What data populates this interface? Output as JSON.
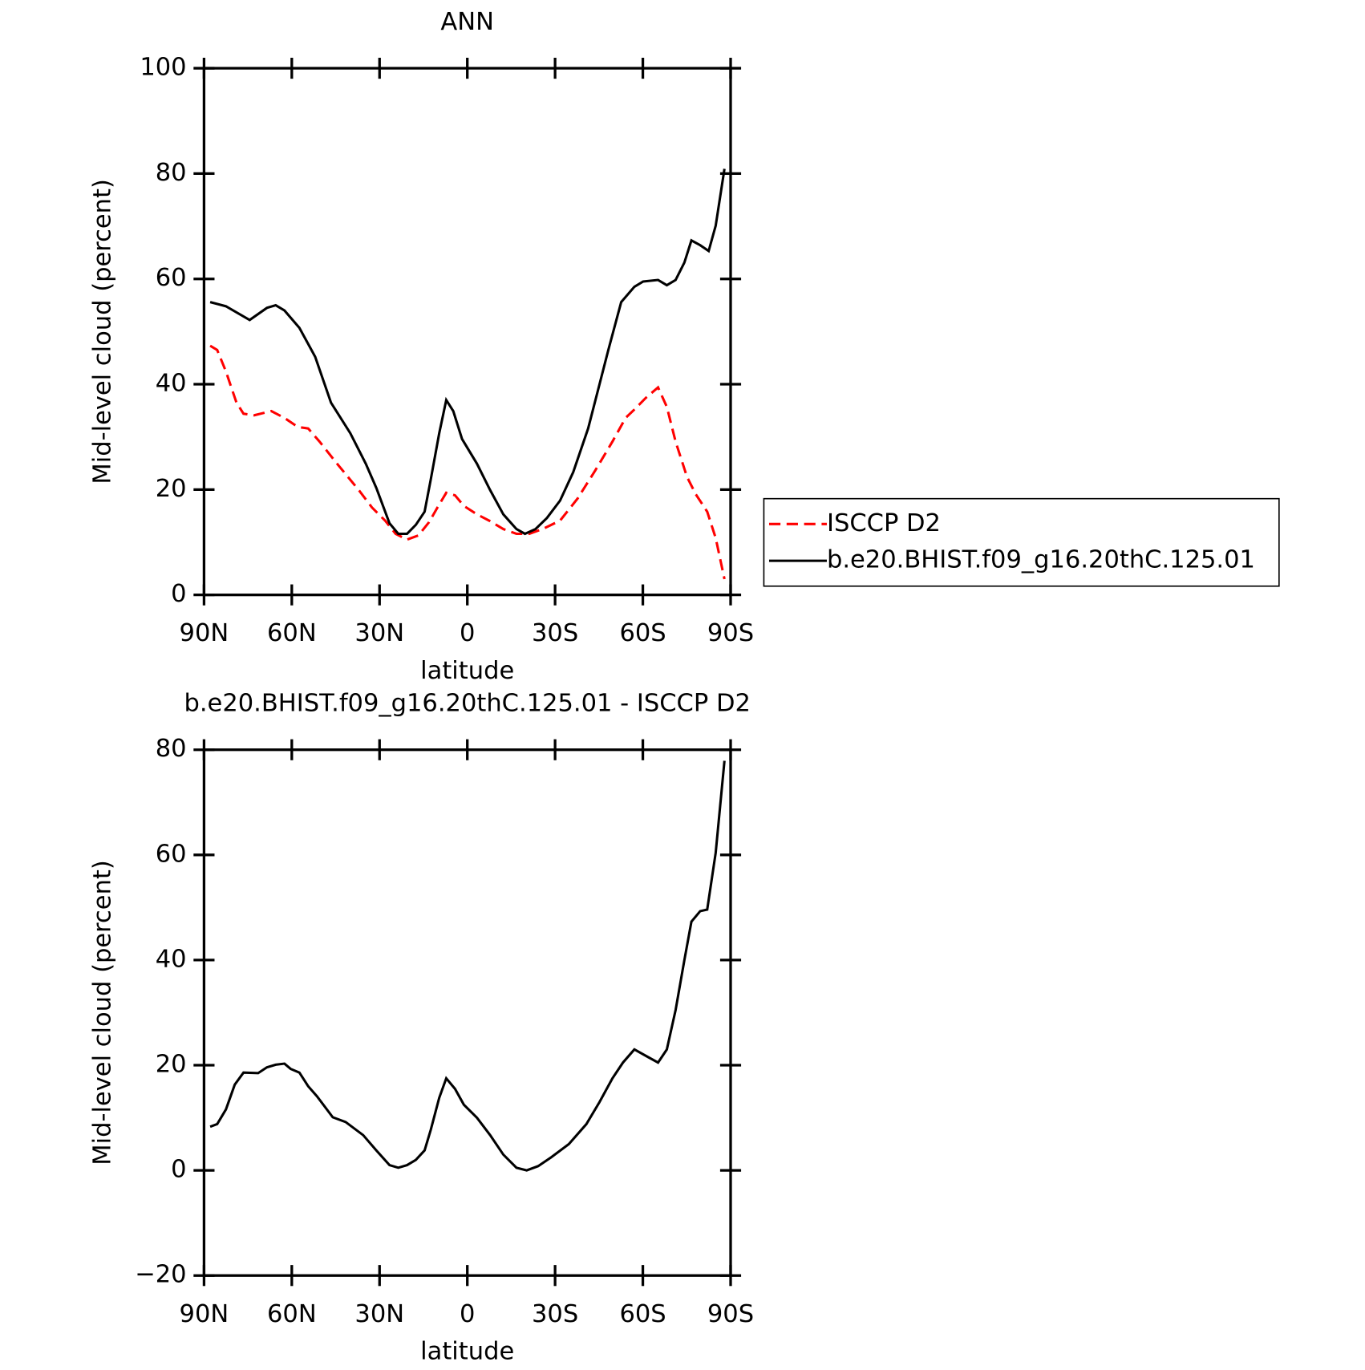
{
  "chart_data": [
    {
      "type": "line",
      "title": "ANN",
      "xlabel": "latitude",
      "ylabel": "Mid-level cloud (percent)",
      "xlim": [
        90,
        -90
      ],
      "ylim": [
        0,
        100
      ],
      "xticks": [
        {
          "value": 90,
          "label": "90N"
        },
        {
          "value": 60,
          "label": "60N"
        },
        {
          "value": 30,
          "label": "30N"
        },
        0,
        {
          "value": -30,
          "label": "30S"
        },
        {
          "value": -60,
          "label": "60S"
        },
        {
          "value": -90,
          "label": "90S"
        }
      ],
      "yticks": [
        0,
        20,
        40,
        60,
        80,
        100
      ],
      "series": [
        {
          "name": "ISCCP D2",
          "color": "#ff0000",
          "dash": true,
          "x": [
            87.9,
            85.5,
            82.5,
            78.9,
            76.5,
            72.9,
            67,
            62.5,
            58,
            54.4,
            50.5,
            44.5,
            37.1,
            32.6,
            28.1,
            24.5,
            20.6,
            16.7,
            13.1,
            10.2,
            7.2,
            4.2,
            1.2,
            -3.3,
            -7.8,
            -12.3,
            -16.8,
            -21.2,
            -25.7,
            -31.7,
            -37.7,
            -43.7,
            -49.6,
            -54.1,
            -57.1,
            -61,
            -65.2,
            -68.2,
            -71.2,
            -75.1,
            -78.1,
            -82,
            -84.9,
            -87.9
          ],
          "values": [
            47.3,
            46.5,
            42.4,
            36.5,
            34.4,
            34.1,
            34.9,
            33.6,
            31.9,
            31.6,
            29.1,
            24.9,
            19.9,
            16.6,
            14.1,
            11.6,
            10.5,
            11.3,
            13.8,
            16.6,
            19.4,
            18.9,
            16.9,
            15.3,
            14,
            12.5,
            11.6,
            11.6,
            12.5,
            14.1,
            18.3,
            23.6,
            29.1,
            33.6,
            35.2,
            37.4,
            39.4,
            35.7,
            29.1,
            22.4,
            19.1,
            15.8,
            10.8,
            3
          ]
        },
        {
          "name": "b.e20.BHIST.f09_g16.20thC.125.01",
          "color": "#000000",
          "dash": false,
          "x": [
            87.9,
            82.5,
            74.4,
            68.5,
            65.5,
            62.5,
            57.4,
            52,
            46.6,
            40,
            34.7,
            31.1,
            26.6,
            23.6,
            20.6,
            17.6,
            14.6,
            12.5,
            9.6,
            7.2,
            4.8,
            1.8,
            -3.3,
            -7.8,
            -12.3,
            -16.8,
            -19.7,
            -23.3,
            -27.2,
            -31.7,
            -36.2,
            -41.3,
            -48.2,
            -52.6,
            -57.1,
            -60.1,
            -65.2,
            -68.2,
            -71.2,
            -74.2,
            -76.6,
            -79.6,
            -82.5,
            -84.9,
            -87.9
          ],
          "values": [
            55.6,
            54.8,
            52.2,
            54.5,
            55,
            54,
            50.7,
            45.2,
            36.5,
            30.7,
            24.9,
            20.3,
            13.6,
            11.6,
            11.6,
            13.3,
            15.8,
            21.9,
            30.7,
            37,
            34.9,
            29.6,
            24.9,
            19.9,
            15.3,
            12.5,
            11.6,
            12.5,
            14.6,
            17.9,
            23.3,
            31.6,
            46.5,
            55.6,
            58.5,
            59.5,
            59.8,
            58.8,
            59.8,
            63.1,
            67.3,
            66.4,
            65.3,
            70.1,
            80.9
          ]
        }
      ]
    },
    {
      "type": "line",
      "title": "b.e20.BHIST.f09_g16.20thC.125.01 - ISCCP D2",
      "xlabel": "latitude",
      "ylabel": "Mid-level cloud (percent)",
      "xlim": [
        90,
        -90
      ],
      "ylim": [
        -20,
        80
      ],
      "xticks": [
        {
          "value": 90,
          "label": "90N"
        },
        {
          "value": 60,
          "label": "60N"
        },
        {
          "value": 30,
          "label": "30N"
        },
        0,
        {
          "value": -30,
          "label": "30S"
        },
        {
          "value": -60,
          "label": "60S"
        },
        {
          "value": -90,
          "label": "90S"
        }
      ],
      "yticks": [
        {
          "value": -20,
          "label": "−20"
        },
        0,
        20,
        40,
        60,
        80
      ],
      "series": [
        {
          "color": "#000000",
          "dash": false,
          "x": [
            87.9,
            85.5,
            82.5,
            79.5,
            76.5,
            71.5,
            68.5,
            65.5,
            62.5,
            60.4,
            57.4,
            54.4,
            51.4,
            46,
            41.6,
            35.6,
            31.1,
            26.6,
            23.6,
            20.6,
            17.6,
            14.6,
            12.5,
            9.6,
            7.2,
            4.2,
            1.2,
            -3.3,
            -7.8,
            -12.3,
            -16.8,
            -20.3,
            -24.2,
            -28.7,
            -34.7,
            -40.7,
            -45.2,
            -49.6,
            -53.2,
            -57.1,
            -61.6,
            -65.2,
            -68.2,
            -71.2,
            -74.2,
            -76.6,
            -79.6,
            -82,
            -84.9,
            -87.9
          ],
          "values": [
            8.3,
            8.8,
            11.6,
            16.3,
            18.6,
            18.5,
            19.6,
            20.1,
            20.3,
            19.3,
            18.6,
            16,
            14.1,
            10.1,
            9.2,
            6.7,
            3.8,
            1,
            0.5,
            1,
            2,
            3.8,
            7.7,
            13.8,
            17.5,
            15.5,
            12.5,
            10,
            6.7,
            3,
            0.5,
            0,
            0.8,
            2.5,
            5,
            8.8,
            13,
            17.5,
            20.5,
            23,
            21.6,
            20.5,
            23,
            30.5,
            40,
            47.3,
            49.3,
            49.6,
            60.4,
            77.9
          ]
        }
      ]
    }
  ]
}
